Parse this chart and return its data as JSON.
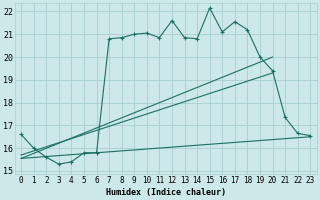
{
  "xlabel": "Humidex (Indice chaleur)",
  "x_min": 0,
  "x_max": 23,
  "y_min": 15,
  "y_max": 22,
  "background_color": "#cce8e8",
  "grid_color": "#aacfcf",
  "line_color": "#1a7060",
  "line1_x": [
    0,
    1,
    2,
    3,
    4,
    5,
    6,
    7,
    8,
    9,
    10,
    11,
    12,
    13,
    14,
    15,
    16,
    17,
    18,
    19,
    20,
    21,
    22,
    23
  ],
  "line1_y": [
    16.6,
    16.0,
    15.6,
    15.3,
    15.4,
    15.8,
    15.8,
    20.8,
    20.85,
    21.0,
    21.05,
    20.85,
    21.6,
    20.85,
    20.8,
    22.15,
    21.1,
    21.55,
    21.2,
    20.0,
    19.4,
    17.35,
    16.65,
    16.55
  ],
  "line2_x": [
    0,
    20
  ],
  "line2_y": [
    15.55,
    20.0
  ],
  "line3_x": [
    0,
    20
  ],
  "line3_y": [
    15.7,
    19.3
  ],
  "line4_x": [
    0,
    23
  ],
  "line4_y": [
    15.55,
    16.5
  ],
  "xticks": [
    0,
    1,
    2,
    3,
    4,
    5,
    6,
    7,
    8,
    9,
    10,
    11,
    12,
    13,
    14,
    15,
    16,
    17,
    18,
    19,
    20,
    21,
    22,
    23
  ],
  "yticks": [
    15,
    16,
    17,
    18,
    19,
    20,
    21,
    22
  ],
  "xlabel_fontsize": 6.0,
  "tick_fontsize": 5.5
}
